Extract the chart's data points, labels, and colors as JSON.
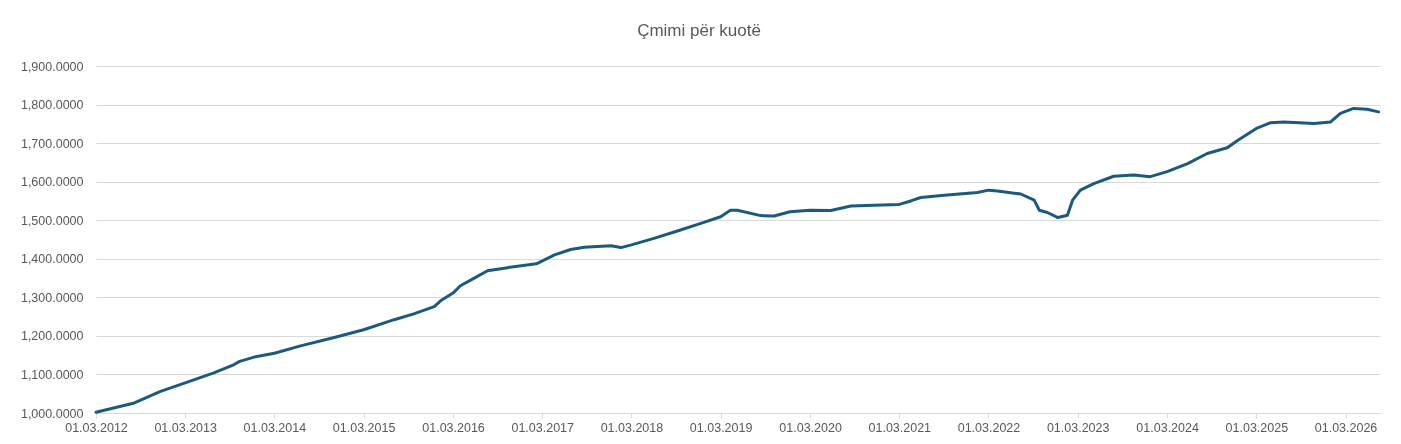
{
  "chart_data": {
    "type": "line",
    "title": "Çmimi për kuotë",
    "x": [
      "2012-03-01",
      "2012-08-05",
      "2012-11-20",
      "2013-03-01",
      "2013-06-26",
      "2013-09-15",
      "2013-10-10",
      "2013-12-08",
      "2014-03-01",
      "2014-06-16",
      "2014-11-01",
      "2015-03-01",
      "2015-07-04",
      "2015-09-22",
      "2015-12-15",
      "2016-01-10",
      "2016-03-01",
      "2016-03-31",
      "2016-05-25",
      "2016-07-20",
      "2016-10-10",
      "2017-02-05",
      "2017-04-20",
      "2017-06-25",
      "2017-08-20",
      "2017-12-07",
      "2018-01-17",
      "2018-03-01",
      "2018-06-01",
      "2018-09-05",
      "2018-12-10",
      "2019-03-01",
      "2019-04-10",
      "2019-05-08",
      "2019-08-12",
      "2019-10-06",
      "2019-12-10",
      "2020-03-01",
      "2020-05-25",
      "2020-08-15",
      "2020-11-18",
      "2021-03-01",
      "2021-04-17",
      "2021-05-28",
      "2021-09-01",
      "2022-01-15",
      "2022-03-01",
      "2022-04-07",
      "2022-07-11",
      "2022-09-04",
      "2022-09-25",
      "2022-10-28",
      "2022-12-10",
      "2023-01-18",
      "2023-02-08",
      "2023-03-12",
      "2023-05-06",
      "2023-07-26",
      "2023-10-17",
      "2023-12-23",
      "2024-03-01",
      "2024-05-24",
      "2024-08-12",
      "2024-11-02",
      "2024-12-14",
      "2025-03-01",
      "2025-04-29",
      "2025-06-22",
      "2025-10-23",
      "2025-12-30",
      "2026-02-08",
      "2026-04-03",
      "2026-05-28",
      "2026-07-14"
    ],
    "series": [
      {
        "color": "#1b5a7c",
        "values": [
          1002,
          1026,
          1056,
          1078,
          1104,
          1125,
          1134,
          1145,
          1155,
          1174,
          1196,
          1216,
          1242,
          1257,
          1276,
          1291,
          1311,
          1330,
          1349,
          1369,
          1377,
          1387,
          1410,
          1424,
          1430,
          1434,
          1429,
          1436,
          1453,
          1472,
          1492,
          1509,
          1526,
          1526,
          1512,
          1511,
          1522,
          1526,
          1525,
          1537,
          1539,
          1541,
          1550,
          1559,
          1565,
          1572,
          1578,
          1576,
          1568,
          1552,
          1526,
          1520,
          1507,
          1513,
          1552,
          1578,
          1595,
          1614,
          1617,
          1613,
          1626,
          1647,
          1673,
          1688,
          1707,
          1738,
          1753,
          1755,
          1751,
          1755,
          1777,
          1790,
          1788,
          1781
        ]
      }
    ],
    "xlim": [
      "2012-03-01",
      "2026-07-20"
    ],
    "xticks": [
      {
        "value": "2012-03-01",
        "label": "01.03.2012"
      },
      {
        "value": "2013-03-01",
        "label": "01.03.2013"
      },
      {
        "value": "2014-03-01",
        "label": "01.03.2014"
      },
      {
        "value": "2015-03-01",
        "label": "01.03.2015"
      },
      {
        "value": "2016-03-01",
        "label": "01.03.2016"
      },
      {
        "value": "2017-03-01",
        "label": "01.03.2017"
      },
      {
        "value": "2018-03-01",
        "label": "01.03.2018"
      },
      {
        "value": "2019-03-01",
        "label": "01.03.2019"
      },
      {
        "value": "2020-03-01",
        "label": "01.03.2020"
      },
      {
        "value": "2021-03-01",
        "label": "01.03.2021"
      },
      {
        "value": "2022-03-01",
        "label": "01.03.2022"
      },
      {
        "value": "2023-03-01",
        "label": "01.03.2023"
      },
      {
        "value": "2024-03-01",
        "label": "01.03.2024"
      },
      {
        "value": "2025-03-01",
        "label": "01.03.2025"
      },
      {
        "value": "2026-03-01",
        "label": "01.03.2026"
      }
    ],
    "ylim": [
      1000,
      1900
    ],
    "yticks": [
      {
        "value": 1000,
        "label": "1,000.0000"
      },
      {
        "value": 1100,
        "label": "1,100.0000"
      },
      {
        "value": 1200,
        "label": "1,200.0000"
      },
      {
        "value": 1300,
        "label": "1,300.0000"
      },
      {
        "value": 1400,
        "label": "1,400.0000"
      },
      {
        "value": 1500,
        "label": "1,500.0000"
      },
      {
        "value": 1600,
        "label": "1,600.0000"
      },
      {
        "value": 1700,
        "label": "1,700.0000"
      },
      {
        "value": 1800,
        "label": "1,800.0000"
      },
      {
        "value": 1900,
        "label": "1,900.0000"
      }
    ],
    "grid": "y",
    "line_style": "solid"
  }
}
